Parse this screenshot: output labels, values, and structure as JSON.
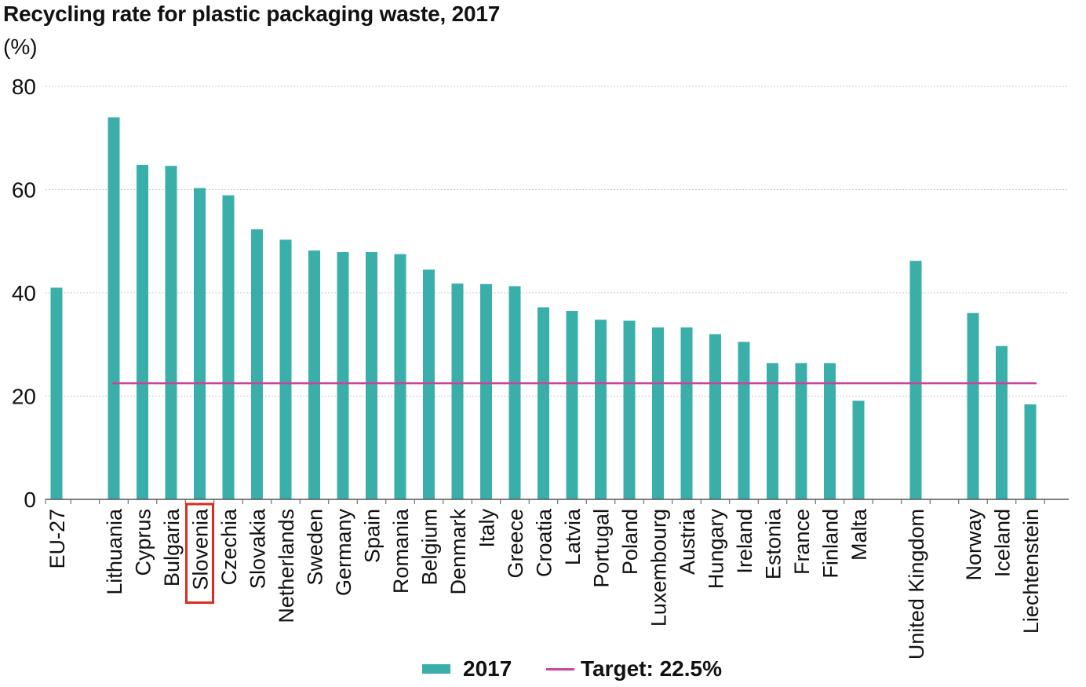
{
  "chart_data": {
    "type": "bar",
    "title": "Recycling rate for plastic packaging waste, 2017",
    "ylabel": "(%)",
    "xlabel": "",
    "ylim": [
      0,
      80
    ],
    "yticks": [
      0,
      20,
      40,
      60,
      80
    ],
    "grid": true,
    "legend_position": "bottom",
    "categories": [
      "EU-27",
      "Lithuania",
      "Cyprus",
      "Bulgaria",
      "Slovenia",
      "Czechia",
      "Slovakia",
      "Netherlands",
      "Sweden",
      "Germany",
      "Spain",
      "Romania",
      "Belgium",
      "Denmark",
      "Italy",
      "Greece",
      "Croatia",
      "Latvia",
      "Portugal",
      "Poland",
      "Luxembourg",
      "Austria",
      "Hungary",
      "Ireland",
      "Estonia",
      "France",
      "Finland",
      "Malta",
      "United Kingdom",
      "Norway",
      "Iceland",
      "Liechtenstein"
    ],
    "series": [
      {
        "name": "2017",
        "color": "#3aafa9",
        "values": [
          41.0,
          74.0,
          64.8,
          64.6,
          60.3,
          58.9,
          52.3,
          50.3,
          48.2,
          47.9,
          47.9,
          47.5,
          44.5,
          41.8,
          41.7,
          41.3,
          37.2,
          36.5,
          34.8,
          34.6,
          33.3,
          33.3,
          32.0,
          30.5,
          26.4,
          26.4,
          26.4,
          19.1,
          46.2,
          36.1,
          29.7,
          18.4
        ]
      }
    ],
    "target": {
      "name": "Target: 22.5%",
      "value": 22.5,
      "color": "#c8449b"
    },
    "highlighted_category": "Slovenia",
    "highlight_color": "#d92b1f"
  }
}
